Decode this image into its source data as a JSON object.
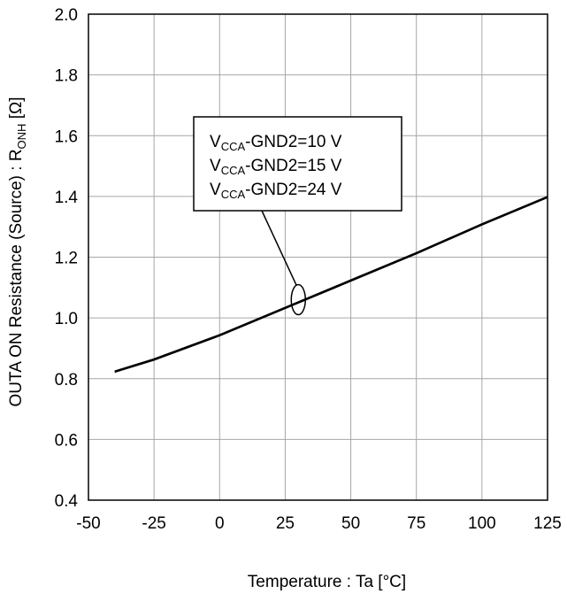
{
  "chart_data": {
    "type": "line",
    "xlabel": "Temperature : Ta [°C]",
    "ylabel": {
      "prefix": "OUTA ON Resistance (Source) : R",
      "sub": "ONH",
      "suffix": " [Ω]"
    },
    "xlim": [
      -50,
      125
    ],
    "ylim": [
      0.4,
      2.0
    ],
    "xticks": [
      "-50",
      "-25",
      "0",
      "25",
      "50",
      "75",
      "100",
      "125"
    ],
    "yticks": [
      "0.4",
      "0.6",
      "0.8",
      "1.0",
      "1.2",
      "1.4",
      "1.6",
      "1.8",
      "2.0"
    ],
    "grid": true,
    "series": [
      {
        "x": [
          -40,
          -25,
          0,
          25,
          50,
          75,
          100,
          125
        ],
        "values": [
          0.825,
          0.865,
          0.945,
          1.035,
          1.125,
          1.215,
          1.31,
          1.4
        ],
        "color": "#000000"
      },
      {
        "x": [
          -40,
          -25,
          0,
          25,
          50,
          75,
          100,
          125
        ],
        "values": [
          0.823,
          0.863,
          0.943,
          1.033,
          1.123,
          1.213,
          1.308,
          1.398
        ],
        "color": "#000000"
      },
      {
        "x": [
          -40,
          -25,
          0,
          25,
          50,
          75,
          100,
          125
        ],
        "values": [
          0.821,
          0.861,
          0.941,
          1.031,
          1.121,
          1.211,
          1.306,
          1.396
        ],
        "color": "#000000"
      }
    ],
    "legend": {
      "entries": [
        {
          "prefix": "V",
          "sub": "CCA",
          "suffix": "-GND2=10 V"
        },
        {
          "prefix": "V",
          "sub": "CCA",
          "suffix": "-GND2=15 V"
        },
        {
          "prefix": "V",
          "sub": "CCA",
          "suffix": "-GND2=24 V"
        }
      ],
      "pointer_target": {
        "x": 30,
        "y": 1.06
      }
    }
  }
}
